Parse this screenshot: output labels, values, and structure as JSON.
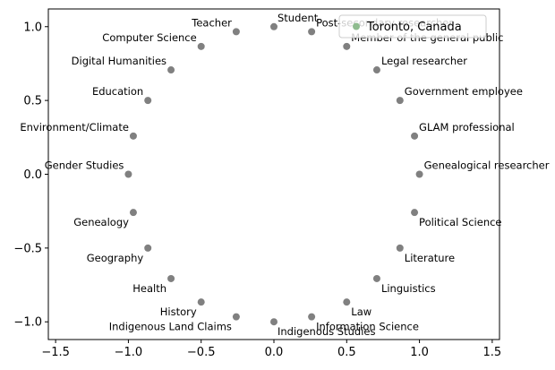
{
  "chart_data": {
    "type": "scatter",
    "title": "",
    "xlabel": "",
    "ylabel": "",
    "xlim": [
      -1.55,
      1.55
    ],
    "ylim": [
      -1.12,
      1.12
    ],
    "xticks": [
      "−1.5",
      "−1.0",
      "−0.5",
      "0.0",
      "0.5",
      "1.0",
      "1.5"
    ],
    "yticks": [
      "−1.0",
      "−0.5",
      "0.0",
      "0.5",
      "1.0"
    ],
    "grid": false,
    "legend": {
      "position": "top-right",
      "entries": [
        {
          "label": "Toronto, Canada",
          "color": "#8fbc8f"
        }
      ]
    },
    "point_color": "#808080",
    "points": [
      {
        "label": "Student",
        "x": 0.0,
        "y": 1.0
      },
      {
        "label": "Post-secondary researcher",
        "x": 0.259,
        "y": 0.966
      },
      {
        "label": "Member of the general public",
        "x": 0.5,
        "y": 0.866
      },
      {
        "label": "Legal researcher",
        "x": 0.707,
        "y": 0.707
      },
      {
        "label": "Government employee",
        "x": 0.866,
        "y": 0.5
      },
      {
        "label": "GLAM professional",
        "x": 0.966,
        "y": 0.259
      },
      {
        "label": "Genealogical researcher",
        "x": 1.0,
        "y": 0.0
      },
      {
        "label": "Political Science",
        "x": 0.966,
        "y": -0.259
      },
      {
        "label": "Literature",
        "x": 0.866,
        "y": -0.5
      },
      {
        "label": "Linguistics",
        "x": 0.707,
        "y": -0.707
      },
      {
        "label": "Law",
        "x": 0.5,
        "y": -0.866
      },
      {
        "label": "Information Science",
        "x": 0.259,
        "y": -0.966
      },
      {
        "label": "Indigenous Studies",
        "x": 0.0,
        "y": -1.0
      },
      {
        "label": "Indigenous Land Claims",
        "x": -0.259,
        "y": -0.966
      },
      {
        "label": "History",
        "x": -0.5,
        "y": -0.866
      },
      {
        "label": "Health",
        "x": -0.707,
        "y": -0.707
      },
      {
        "label": "Geography",
        "x": -0.866,
        "y": -0.5
      },
      {
        "label": "Genealogy",
        "x": -0.966,
        "y": -0.259
      },
      {
        "label": "Gender Studies",
        "x": -1.0,
        "y": 0.0
      },
      {
        "label": "Environment/Climate",
        "x": -0.966,
        "y": 0.259
      },
      {
        "label": "Education",
        "x": -0.866,
        "y": 0.5
      },
      {
        "label": "Digital Humanities",
        "x": -0.707,
        "y": 0.707
      },
      {
        "label": "Computer Science",
        "x": -0.5,
        "y": 0.866
      },
      {
        "label": "Teacher",
        "x": -0.259,
        "y": 0.966
      }
    ]
  }
}
